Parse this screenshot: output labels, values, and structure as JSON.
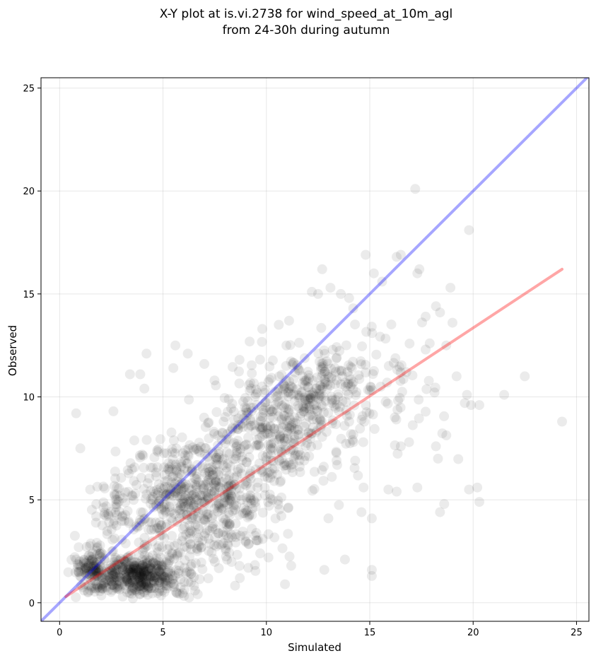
{
  "chart_data": {
    "type": "scatter",
    "title_line1": "X-Y plot at is.vi.2738 for wind_speed_at_10m_agl",
    "title_line2": "from 24-30h during autumn",
    "xlabel": "Simulated",
    "ylabel": "Observed",
    "xlim": [
      -0.9,
      25.6
    ],
    "ylim": [
      -0.9,
      25.5
    ],
    "xticks": [
      0,
      5,
      10,
      15,
      20,
      25
    ],
    "yticks": [
      0,
      5,
      10,
      15,
      20,
      25
    ],
    "grid": true,
    "point_color": "#000000",
    "point_alpha": 0.08,
    "identity_line": {
      "color": "#0000ff",
      "alpha": 0.35,
      "x": [
        -0.9,
        25.6
      ],
      "y": [
        -0.9,
        25.6
      ]
    },
    "fit_line": {
      "color": "#ff0000",
      "alpha": 0.35,
      "x": [
        0.3,
        24.3
      ],
      "y": [
        0.3,
        16.2
      ]
    },
    "outliers": [
      [
        0.8,
        9.2
      ],
      [
        1.0,
        7.5
      ],
      [
        2.6,
        9.3
      ],
      [
        3.4,
        11.1
      ],
      [
        3.9,
        11.1
      ],
      [
        4.2,
        12.1
      ],
      [
        4.1,
        10.4
      ],
      [
        5.5,
        11.4
      ],
      [
        5.6,
        12.5
      ],
      [
        6.2,
        12.1
      ],
      [
        7.0,
        11.6
      ],
      [
        8.7,
        11.8
      ],
      [
        9.8,
        13.3
      ],
      [
        10.6,
        13.5
      ],
      [
        11.1,
        13.7
      ],
      [
        12.2,
        15.1
      ],
      [
        12.5,
        15.0
      ],
      [
        12.7,
        16.2
      ],
      [
        13.1,
        15.3
      ],
      [
        13.6,
        15.0
      ],
      [
        14.0,
        14.8
      ],
      [
        14.2,
        14.3
      ],
      [
        14.8,
        16.9
      ],
      [
        15.2,
        16.0
      ],
      [
        15.6,
        15.6
      ],
      [
        16.3,
        16.8
      ],
      [
        16.5,
        16.9
      ],
      [
        17.2,
        20.1
      ],
      [
        17.3,
        16.0
      ],
      [
        17.4,
        16.2
      ],
      [
        17.7,
        13.9
      ],
      [
        17.7,
        12.3
      ],
      [
        17.9,
        12.6
      ],
      [
        18.2,
        14.4
      ],
      [
        18.4,
        14.1
      ],
      [
        18.9,
        15.3
      ],
      [
        19.0,
        13.6
      ],
      [
        18.7,
        12.5
      ],
      [
        19.8,
        18.1
      ],
      [
        19.2,
        11.0
      ],
      [
        19.7,
        10.1
      ],
      [
        19.6,
        9.7
      ],
      [
        19.9,
        9.6
      ],
      [
        20.3,
        9.6
      ],
      [
        21.5,
        10.1
      ],
      [
        22.5,
        11.0
      ],
      [
        24.3,
        8.8
      ],
      [
        20.2,
        5.6
      ],
      [
        20.3,
        4.9
      ],
      [
        19.8,
        5.5
      ],
      [
        18.6,
        4.8
      ],
      [
        18.4,
        4.4
      ],
      [
        18.2,
        7.6
      ],
      [
        18.3,
        7.0
      ],
      [
        17.3,
        5.6
      ],
      [
        16.5,
        7.6
      ],
      [
        16.9,
        7.8
      ],
      [
        15.1,
        4.1
      ],
      [
        15.1,
        1.6
      ],
      [
        15.1,
        1.3
      ],
      [
        13.8,
        2.1
      ],
      [
        13.0,
        4.1
      ],
      [
        14.7,
        5.6
      ],
      [
        14.6,
        4.4
      ],
      [
        15.9,
        5.5
      ],
      [
        16.3,
        5.4
      ],
      [
        12.8,
        1.6
      ],
      [
        11.2,
        1.8
      ],
      [
        10.9,
        0.9
      ],
      [
        10.1,
        2.2
      ],
      [
        9.7,
        2.4
      ]
    ],
    "clusters": [
      {
        "cx": 3.8,
        "cy": 1.3,
        "sx": 1.5,
        "sy": 0.7,
        "n": 430
      },
      {
        "cx": 6.8,
        "cy": 4.8,
        "sx": 2.4,
        "sy": 2.4,
        "n": 620
      },
      {
        "cx": 10.5,
        "cy": 8.5,
        "sx": 2.2,
        "sy": 2.2,
        "n": 380
      },
      {
        "cx": 12.8,
        "cy": 10.8,
        "sx": 1.4,
        "sy": 1.4,
        "n": 130
      },
      {
        "cx": 15.5,
        "cy": 10.5,
        "sx": 2.3,
        "sy": 2.3,
        "n": 90
      },
      {
        "cx": 1.5,
        "cy": 1.6,
        "sx": 0.6,
        "sy": 0.9,
        "n": 120
      },
      {
        "cx": 2.5,
        "cy": 4.5,
        "sx": 0.8,
        "sy": 1.3,
        "n": 45
      }
    ]
  }
}
